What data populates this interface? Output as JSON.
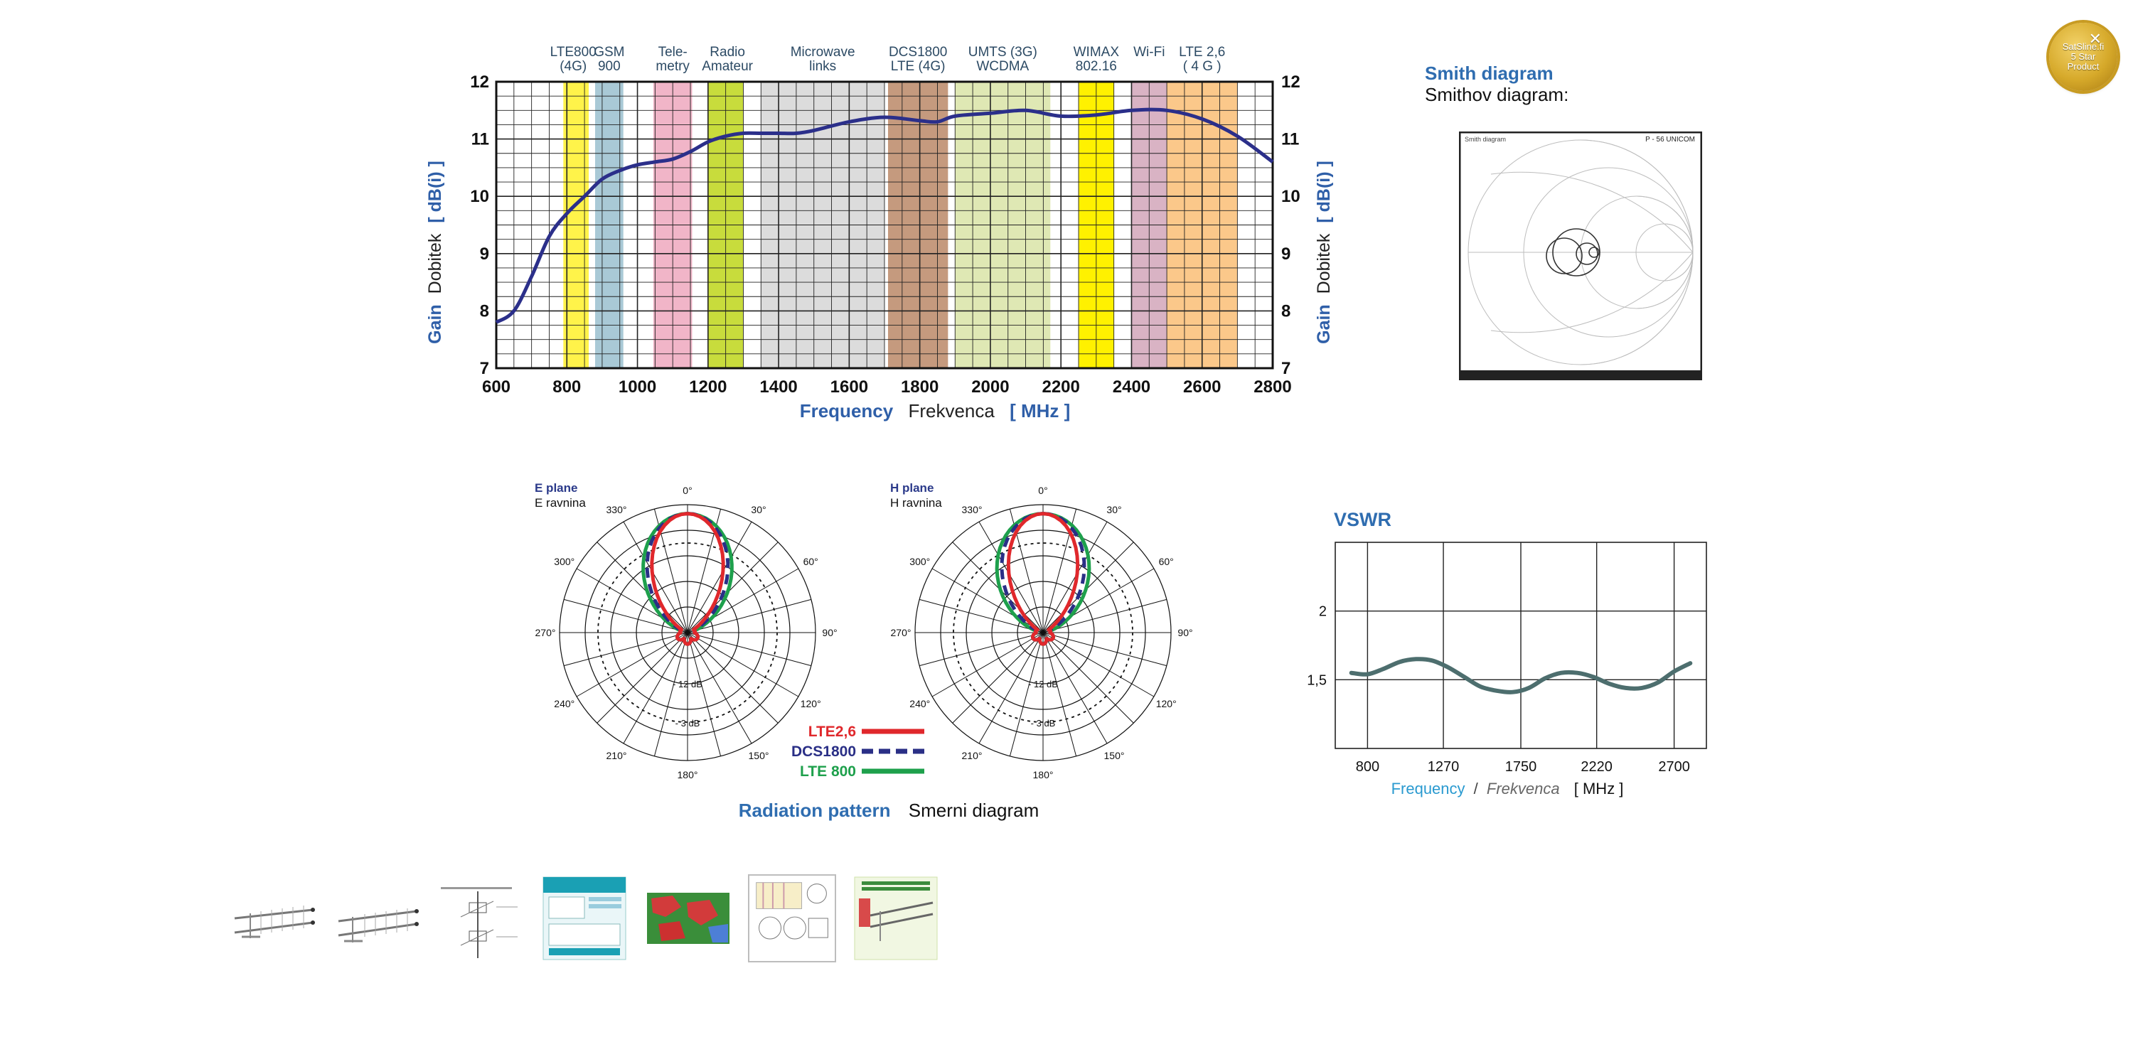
{
  "badge": {
    "lines": [
      "SatSline.fi",
      "5 Star",
      "Product"
    ],
    "close_icon": "close-icon"
  },
  "gain_chart": {
    "left_axis_label": [
      "Gain",
      "Dobitek",
      "[ dB(i) ]"
    ],
    "right_axis_label": [
      "Gain",
      "Dobitek",
      "[ dB(i) ]"
    ],
    "x_label": [
      "Frequency",
      "Frekvenca",
      "[ MHz ]"
    ],
    "band_labels": [
      [
        "LTE800",
        "(4G)"
      ],
      [
        "GSM",
        "900"
      ],
      [
        "Tele-",
        "metry"
      ],
      [
        "Radio",
        "Amateur"
      ],
      [
        "Microwave",
        "links"
      ],
      [
        "DCS1800",
        "LTE (4G)"
      ],
      [
        "UMTS (3G)",
        "WCDMA"
      ],
      [
        "WIMAX",
        "802.16"
      ],
      [
        "Wi-Fi",
        ""
      ],
      [
        "LTE 2,6",
        "( 4 G )"
      ]
    ]
  },
  "smith": {
    "title": "Smith diagram",
    "subtitle": "Smithov diagram:",
    "inner_title": "Smith diagram",
    "inner_model": "P - 56 UNICOM"
  },
  "radiation": {
    "e_plane": [
      "E plane",
      "E ravnina"
    ],
    "h_plane": [
      "H plane",
      "H ravnina"
    ],
    "angles": [
      "0°",
      "30°",
      "60°",
      "90°",
      "120°",
      "150°",
      "180°",
      "210°",
      "240°",
      "270°",
      "300°",
      "330°"
    ],
    "db_labels": [
      "- 12 dB",
      "- 3 dB"
    ],
    "legend": [
      {
        "name": "LTE2,6",
        "color": "#e0282c"
      },
      {
        "name": "DCS1800",
        "color": "#2a2f86"
      },
      {
        "name": "LTE 800",
        "color": "#1ea04c"
      }
    ],
    "caption": [
      "Radiation pattern",
      "Smerni diagram"
    ]
  },
  "vswr": {
    "title": "VSWR",
    "y_ticks": [
      "2",
      "1,5"
    ],
    "x_ticks": [
      "800",
      "1270",
      "1750",
      "2220",
      "2700"
    ],
    "x_label": [
      "Frequency",
      "/",
      "Frekvenca",
      "[ MHz ]"
    ]
  },
  "chart_data": [
    {
      "type": "line",
      "title": "",
      "xlabel": "Frequency Frekvenca [ MHz ]",
      "ylabel": "Gain Dobitek [ dB(i) ]",
      "xlim": [
        600,
        2800
      ],
      "ylim": [
        7,
        12
      ],
      "xticks": [
        600,
        800,
        1000,
        1200,
        1400,
        1600,
        1800,
        2000,
        2200,
        2400,
        2600,
        2800
      ],
      "yticks": [
        7,
        8,
        9,
        10,
        11,
        12
      ],
      "grid": true,
      "bands": [
        {
          "label": "LTE800 (4G)",
          "from": 790,
          "to": 862,
          "color": "#fff34a"
        },
        {
          "label": "GSM 900",
          "from": 880,
          "to": 960,
          "color": "#a9c9d6"
        },
        {
          "label": "Telemetry",
          "from": 1045,
          "to": 1155,
          "color": "#f1b5c8"
        },
        {
          "label": "Radio Amateur",
          "from": 1200,
          "to": 1300,
          "color": "#c8dc3c"
        },
        {
          "label": "Microwave links",
          "from": 1350,
          "to": 1700,
          "color": "#dcdcdc"
        },
        {
          "label": "DCS1800 LTE (4G)",
          "from": 1710,
          "to": 1880,
          "color": "#c59a7e"
        },
        {
          "label": "UMTS (3G) WCDMA",
          "from": 1900,
          "to": 2170,
          "color": "#dfe8b4"
        },
        {
          "label": "WIMAX 802.16",
          "from": 2250,
          "to": 2350,
          "color": "#fff100"
        },
        {
          "label": "Wi-Fi",
          "from": 2400,
          "to": 2500,
          "color": "#d9b3c4"
        },
        {
          "label": "LTE 2,6 (4 G)",
          "from": 2500,
          "to": 2700,
          "color": "#fbc88a"
        }
      ],
      "series": [
        {
          "color": "#2b2f8a",
          "x": [
            600,
            650,
            700,
            750,
            800,
            850,
            900,
            950,
            1000,
            1050,
            1100,
            1150,
            1200,
            1250,
            1300,
            1350,
            1400,
            1450,
            1500,
            1600,
            1700,
            1800,
            1850,
            1900,
            2000,
            2100,
            2200,
            2300,
            2400,
            2500,
            2600,
            2700,
            2800
          ],
          "y": [
            7.8,
            8.0,
            8.6,
            9.3,
            9.7,
            10.0,
            10.3,
            10.45,
            10.55,
            10.6,
            10.65,
            10.78,
            10.95,
            11.05,
            11.1,
            11.1,
            11.1,
            11.1,
            11.15,
            11.3,
            11.38,
            11.32,
            11.3,
            11.4,
            11.45,
            11.5,
            11.4,
            11.42,
            11.5,
            11.5,
            11.35,
            11.05,
            10.6
          ]
        }
      ]
    },
    {
      "type": "line",
      "title": "VSWR",
      "xlabel": "Frequency / Frekvenca [ MHz ]",
      "categories": [
        "800",
        "1270",
        "1750",
        "2220",
        "2700"
      ],
      "xlim": [
        600,
        2900
      ],
      "ylim": [
        1,
        2.5
      ],
      "yticks": [
        2,
        1.5
      ],
      "grid": true,
      "series": [
        {
          "color": "#4d6e6e",
          "x": [
            700,
            800,
            900,
            1000,
            1100,
            1200,
            1300,
            1400,
            1500,
            1600,
            1700,
            1800,
            1900,
            2000,
            2100,
            2200,
            2300,
            2400,
            2500,
            2600,
            2700,
            2800
          ],
          "y": [
            1.55,
            1.54,
            1.58,
            1.63,
            1.65,
            1.64,
            1.59,
            1.52,
            1.45,
            1.42,
            1.41,
            1.44,
            1.51,
            1.55,
            1.55,
            1.52,
            1.47,
            1.44,
            1.44,
            1.48,
            1.56,
            1.62
          ]
        }
      ]
    },
    {
      "type": "polar",
      "title": "E plane",
      "grid": true,
      "series": [
        {
          "name": "LTE2,6",
          "color": "#e0282c",
          "lobe_halfwidth_deg": 30
        },
        {
          "name": "DCS1800",
          "color": "#2a2f86",
          "lobe_halfwidth_deg": 40
        },
        {
          "name": "LTE 800",
          "color": "#1ea04c",
          "lobe_halfwidth_deg": 50
        }
      ]
    },
    {
      "type": "polar",
      "title": "H plane",
      "grid": true,
      "series": [
        {
          "name": "LTE2,6",
          "color": "#e0282c",
          "lobe_halfwidth_deg": 28
        },
        {
          "name": "DCS1800",
          "color": "#2a2f86",
          "lobe_halfwidth_deg": 42
        },
        {
          "name": "LTE 800",
          "color": "#1ea04c",
          "lobe_halfwidth_deg": 55
        }
      ]
    }
  ]
}
